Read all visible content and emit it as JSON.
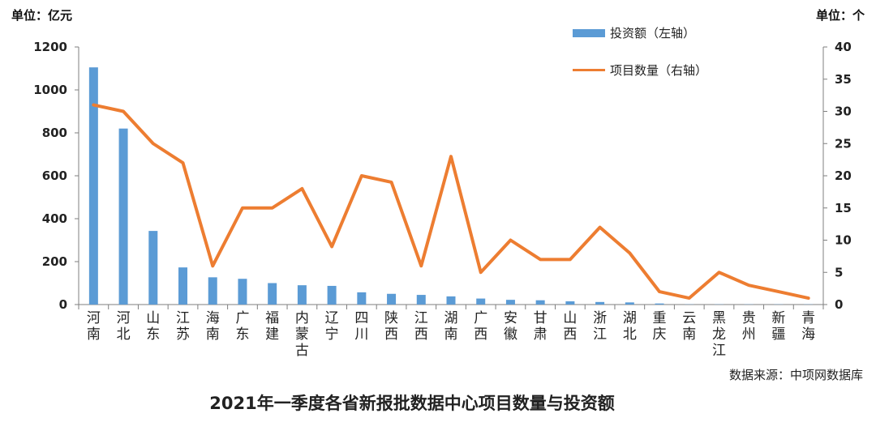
{
  "header": {
    "left_unit": "单位：亿元",
    "right_unit": "单位：个"
  },
  "footer": {
    "source": "数据来源：中项网数据库",
    "title": "2021年一季度各省新报批数据中心项目数量与投资额"
  },
  "colors": {
    "bar": "#5B9BD5",
    "line": "#ED7D31"
  },
  "chart_data": {
    "type": "bar",
    "categories": [
      "河南",
      "河北",
      "山东",
      "江苏",
      "海南",
      "广东",
      "福建",
      "内蒙古",
      "辽宁",
      "四川",
      "陕西",
      "江西",
      "湖南",
      "广西",
      "安徽",
      "甘肃",
      "山西",
      "浙江",
      "湖北",
      "重庆",
      "云南",
      "黑龙江",
      "贵州",
      "新疆",
      "青海"
    ],
    "series": [
      {
        "name": "投资额（左轴）",
        "type": "bar",
        "axis": "left",
        "values": [
          1105,
          820,
          343,
          173,
          127,
          120,
          100,
          90,
          87,
          57,
          50,
          45,
          38,
          28,
          22,
          20,
          15,
          12,
          10,
          5,
          1,
          1,
          1,
          1,
          1
        ]
      },
      {
        "name": "项目数量（右轴）",
        "type": "line",
        "axis": "right",
        "values": [
          31,
          30,
          25,
          22,
          6,
          15,
          15,
          18,
          9,
          20,
          19,
          6,
          23,
          5,
          10,
          7,
          7,
          12,
          8,
          2,
          1,
          5,
          3,
          2,
          1
        ]
      }
    ],
    "yleft": {
      "min": 0,
      "max": 1200,
      "ticks": [
        0,
        200,
        400,
        600,
        800,
        1000,
        1200
      ]
    },
    "yright": {
      "min": 0,
      "max": 40,
      "ticks": [
        0,
        5,
        10,
        15,
        20,
        25,
        30,
        35,
        40
      ]
    },
    "legend_position": "top-right",
    "grid": false
  }
}
